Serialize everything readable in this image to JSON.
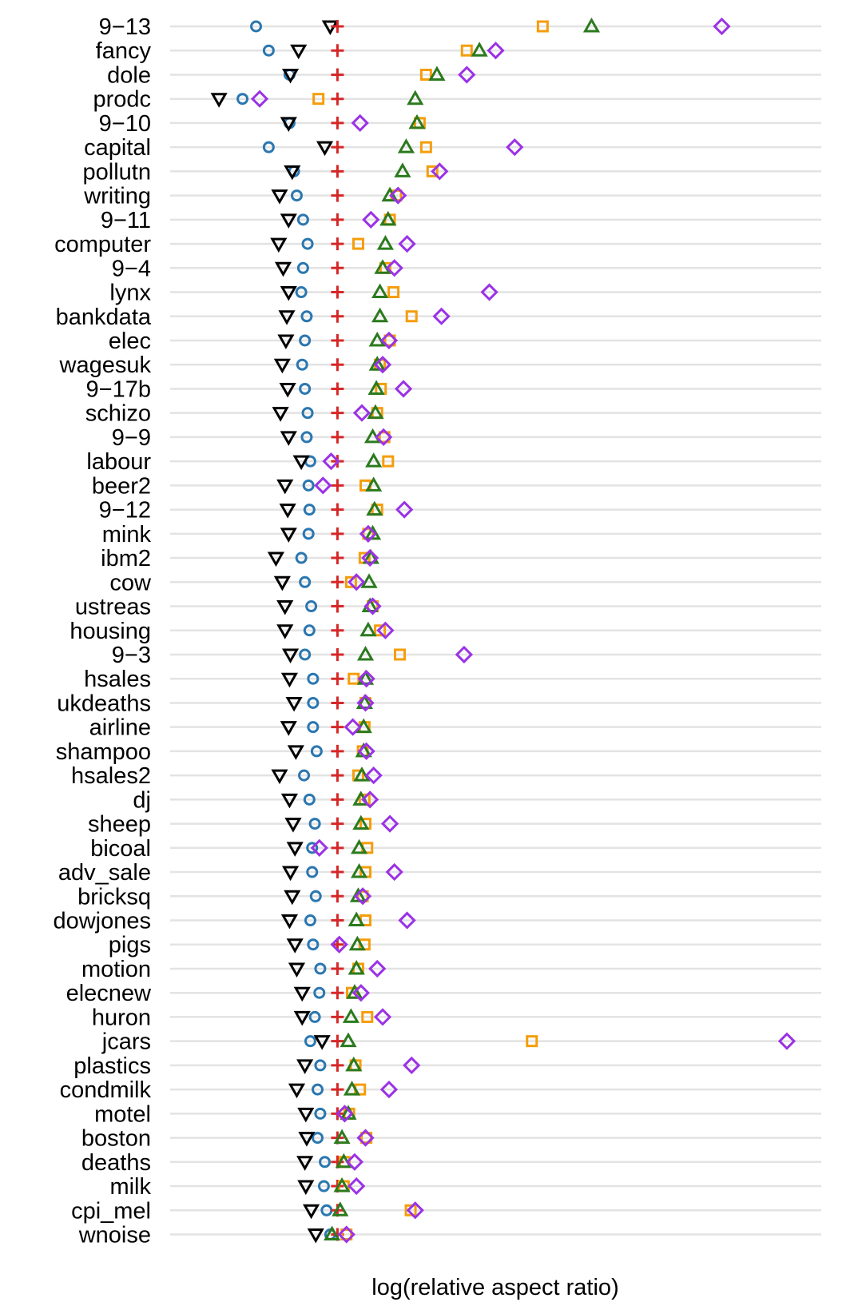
{
  "chart_data": {
    "type": "scatter",
    "title": "",
    "xlabel": "log(relative aspect ratio)",
    "ylabel": "",
    "grid": true,
    "legend": "none",
    "xlim": [
      -1.85,
      5.35
    ],
    "categories": [
      "9−13",
      "fancy",
      "dole",
      "prodc",
      "9−10",
      "capital",
      "pollutn",
      "writing",
      "9−11",
      "computer",
      "9−4",
      "lynx",
      "bankdata",
      "elec",
      "wagesuk",
      "9−17b",
      "schizo",
      "9−9",
      "labour",
      "beer2",
      "9−12",
      "mink",
      "ibm2",
      "cow",
      "ustreas",
      "housing",
      "9−3",
      "hsales",
      "ukdeaths",
      "airline",
      "shampoo",
      "hsales2",
      "dj",
      "sheep",
      "bicoal",
      "adv_sale",
      "bricksq",
      "dowjones",
      "pigs",
      "motion",
      "elecnew",
      "huron",
      "jcars",
      "plastics",
      "condmilk",
      "motel",
      "boston",
      "deaths",
      "milk",
      "cpi_mel",
      "wnoise"
    ],
    "series": [
      {
        "marker": "circle",
        "color": "#2b77b0",
        "values": [
          -0.9,
          -0.76,
          -0.53,
          -1.05,
          -0.53,
          -0.76,
          -0.48,
          -0.45,
          -0.38,
          -0.33,
          -0.38,
          -0.4,
          -0.34,
          -0.36,
          -0.39,
          -0.36,
          -0.33,
          -0.34,
          -0.3,
          -0.32,
          -0.31,
          -0.32,
          -0.4,
          -0.36,
          -0.29,
          -0.31,
          -0.36,
          -0.27,
          -0.27,
          -0.27,
          -0.23,
          -0.37,
          -0.31,
          -0.25,
          -0.28,
          -0.28,
          -0.24,
          -0.3,
          -0.27,
          -0.19,
          -0.2,
          -0.25,
          -0.3,
          -0.19,
          -0.22,
          -0.19,
          -0.22,
          -0.14,
          -0.15,
          -0.12,
          -0.08
        ]
      },
      {
        "marker": "triangle-down",
        "color": "#000000",
        "values": [
          -0.08,
          -0.43,
          -0.52,
          -1.31,
          -0.54,
          -0.14,
          -0.5,
          -0.64,
          -0.54,
          -0.65,
          -0.6,
          -0.54,
          -0.56,
          -0.57,
          -0.61,
          -0.55,
          -0.63,
          -0.54,
          -0.4,
          -0.58,
          -0.55,
          -0.54,
          -0.68,
          -0.61,
          -0.58,
          -0.58,
          -0.52,
          -0.53,
          -0.48,
          -0.54,
          -0.46,
          -0.64,
          -0.53,
          -0.49,
          -0.47,
          -0.52,
          -0.5,
          -0.53,
          -0.47,
          -0.45,
          -0.39,
          -0.39,
          -0.17,
          -0.36,
          -0.45,
          -0.35,
          -0.34,
          -0.36,
          -0.35,
          -0.29,
          -0.24
        ]
      },
      {
        "marker": "plus",
        "color": "#d62728",
        "values": [
          0,
          0,
          0,
          0,
          0,
          0,
          0,
          0,
          0,
          0,
          0,
          0,
          0,
          0,
          0,
          0,
          0,
          0,
          0,
          0,
          0,
          0,
          0,
          0,
          0,
          0,
          0,
          0,
          0,
          0,
          0,
          0,
          0,
          0,
          0,
          0,
          0,
          0,
          0,
          0,
          0,
          0,
          0,
          0,
          0,
          0,
          0,
          0,
          0,
          0,
          0
        ]
      },
      {
        "marker": "square",
        "color": "#f59d0a",
        "values": [
          2.27,
          1.43,
          0.98,
          -0.21,
          0.91,
          0.98,
          1.05,
          0.65,
          0.58,
          0.23,
          0.53,
          0.62,
          0.82,
          0.58,
          0.47,
          0.48,
          0.44,
          0.52,
          0.56,
          0.31,
          0.44,
          0.34,
          0.3,
          0.15,
          0.39,
          0.47,
          0.69,
          0.18,
          0.31,
          0.3,
          0.28,
          0.23,
          0.3,
          0.31,
          0.33,
          0.31,
          0.28,
          0.31,
          0.3,
          0.23,
          0.16,
          0.33,
          2.15,
          0.2,
          0.25,
          0.13,
          0.32,
          0.08,
          0.07,
          0.81,
          0.1
        ]
      },
      {
        "marker": "triangle-up",
        "color": "#2b7a1e",
        "values": [
          2.81,
          1.57,
          1.1,
          0.86,
          0.88,
          0.76,
          0.72,
          0.58,
          0.56,
          0.53,
          0.5,
          0.47,
          0.47,
          0.44,
          0.44,
          0.43,
          0.42,
          0.39,
          0.4,
          0.4,
          0.41,
          0.39,
          0.37,
          0.35,
          0.36,
          0.34,
          0.31,
          0.31,
          0.3,
          0.29,
          0.29,
          0.27,
          0.26,
          0.26,
          0.24,
          0.24,
          0.23,
          0.21,
          0.22,
          0.21,
          0.19,
          0.15,
          0.12,
          0.18,
          0.16,
          0.12,
          0.05,
          0.07,
          0.05,
          0.03,
          -0.06
        ]
      },
      {
        "marker": "diamond",
        "color": "#9b32e6",
        "values": [
          4.25,
          1.75,
          1.43,
          -0.86,
          0.25,
          1.96,
          1.13,
          0.67,
          0.37,
          0.77,
          0.63,
          1.68,
          1.15,
          0.57,
          0.5,
          0.73,
          0.27,
          0.51,
          -0.07,
          -0.16,
          0.74,
          0.34,
          0.36,
          0.21,
          0.39,
          0.53,
          1.4,
          0.32,
          0.31,
          0.17,
          0.32,
          0.4,
          0.36,
          0.58,
          -0.2,
          0.63,
          0.28,
          0.77,
          0.02,
          0.44,
          0.26,
          0.5,
          4.97,
          0.82,
          0.57,
          0.08,
          0.31,
          0.19,
          0.21,
          0.86,
          0.1
        ]
      }
    ]
  }
}
